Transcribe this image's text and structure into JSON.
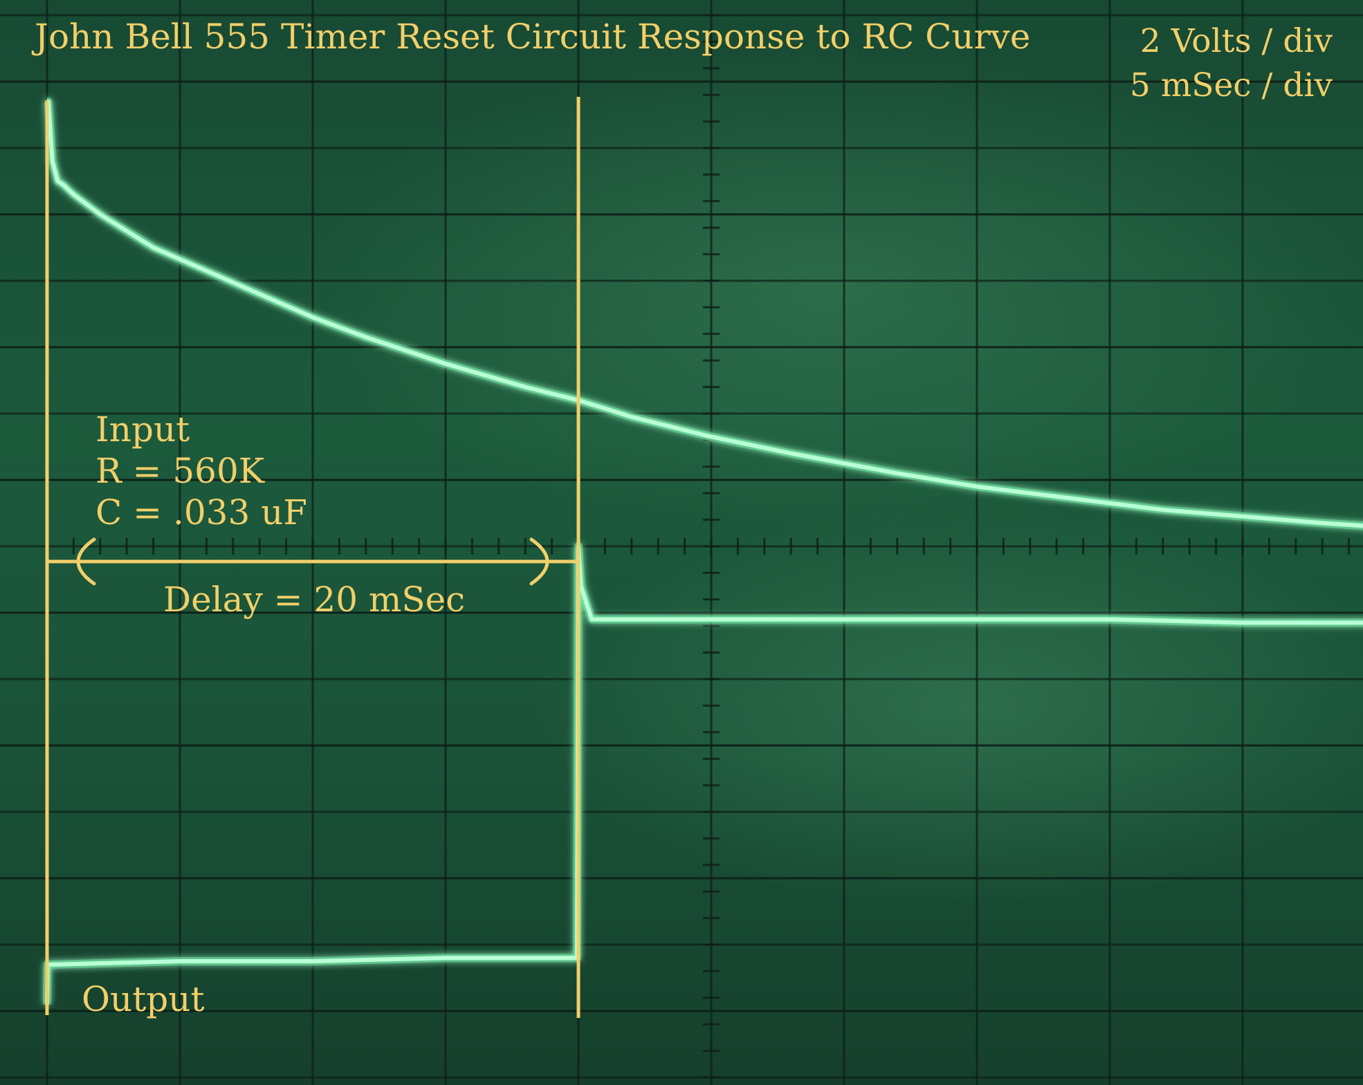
{
  "title": "John Bell 555 Timer Reset Circuit Response to RC Curve",
  "scale": {
    "volts_per_div": "2 Volts / div",
    "time_per_div": "5 mSec / div"
  },
  "annotations": {
    "input_label": "Input",
    "r_label": "R = 560K",
    "c_label": "C = .033 uF",
    "delay_label": "Delay = 20 mSec",
    "output_label": "Output"
  },
  "colors": {
    "trace": "#b9ffd6",
    "trace_glow": "#5fe39a",
    "annotation": "#f2cf6a",
    "grid": "#0d1f17"
  },
  "chart_data": {
    "type": "line",
    "title": "John Bell 555 Timer Reset Circuit Response to RC Curve",
    "xlabel": "",
    "ylabel": "",
    "grid": true,
    "divisions": {
      "x": 10,
      "y": 8
    },
    "units": {
      "x": "mSec",
      "y": "Volts"
    },
    "xlim": [
      0,
      50
    ],
    "ylim": [
      -8,
      8
    ],
    "trigger_time": 0.0,
    "reset_time": 20.0,
    "series": [
      {
        "name": "Input",
        "x": [
          0.0,
          0.05,
          0.2,
          0.4,
          0.6,
          1.0,
          2.0,
          4.0,
          6.0,
          8.0,
          10.0,
          12.0,
          15.0,
          18.0,
          20.0,
          22.0,
          25.0,
          28.0,
          30.0,
          32.0,
          35.0,
          38.0,
          40.0,
          42.0,
          45.0,
          48.0,
          49.9
        ],
        "y": [
          6.7,
          6.7,
          5.8,
          5.5,
          5.45,
          5.3,
          5.0,
          4.5,
          4.15,
          3.8,
          3.45,
          3.15,
          2.75,
          2.4,
          2.2,
          1.95,
          1.65,
          1.4,
          1.25,
          1.1,
          0.9,
          0.75,
          0.65,
          0.55,
          0.45,
          0.35,
          0.3
        ]
      },
      {
        "name": "Output",
        "x": [
          0.0,
          0.02,
          0.3,
          5.0,
          10.0,
          15.0,
          19.95,
          20.0,
          20.1,
          20.5,
          25.0,
          30.0,
          35.0,
          40.0,
          45.0,
          49.9
        ],
        "y": [
          -6.9,
          -6.3,
          -6.3,
          -6.25,
          -6.25,
          -6.2,
          -6.2,
          0.0,
          -0.6,
          -1.1,
          -1.1,
          -1.1,
          -1.1,
          -1.1,
          -1.15,
          -1.15
        ]
      }
    ]
  }
}
